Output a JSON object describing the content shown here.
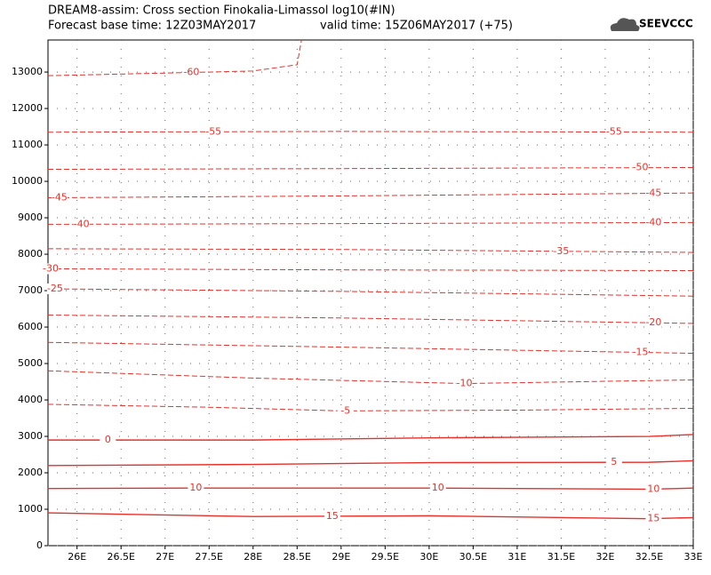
{
  "chart_data": {
    "type": "contour",
    "title": "DREAM8-assim: Cross section Finokalia-Limassol log10(#IN)",
    "subtitle": "Forecast base time: 12Z03MAY2017",
    "valid_time": "valid time: 15Z06MAY2017 (+75)",
    "logo": "SEEVCCC",
    "color": "#e8302a",
    "grid": true,
    "xlim": [
      25.67,
      33
    ],
    "ylim": [
      0,
      13880
    ],
    "xticks": [
      {
        "value": 26,
        "label": "26E"
      },
      {
        "value": 26.5,
        "label": "26.5E"
      },
      {
        "value": 27,
        "label": "27E"
      },
      {
        "value": 27.5,
        "label": "27.5E"
      },
      {
        "value": 28,
        "label": "28E"
      },
      {
        "value": 28.5,
        "label": "28.5E"
      },
      {
        "value": 29,
        "label": "29E"
      },
      {
        "value": 29.5,
        "label": "29.5E"
      },
      {
        "value": 30,
        "label": "30E"
      },
      {
        "value": 30.5,
        "label": "30.5E"
      },
      {
        "value": 31,
        "label": "31E"
      },
      {
        "value": 31.5,
        "label": "31.5E"
      },
      {
        "value": 32,
        "label": "32E"
      },
      {
        "value": 32.5,
        "label": "32.5E"
      },
      {
        "value": 33,
        "label": "33E"
      }
    ],
    "yticks": [
      0,
      1000,
      2000,
      3000,
      4000,
      5000,
      6000,
      7000,
      8000,
      9000,
      10000,
      11000,
      12000,
      13000
    ],
    "contours": [
      {
        "level": -60,
        "style": "dashed",
        "x": [
          25.67,
          27.5,
          28,
          28.5,
          28.55
        ],
        "y": [
          12900,
          13000,
          13030,
          13200,
          13880
        ],
        "label_x": [
          27.3
        ]
      },
      {
        "level": -55,
        "style": "dashed",
        "x": [
          25.67,
          29,
          33
        ],
        "y": [
          11350,
          11370,
          11350
        ],
        "label_x": [
          27.55,
          32.1
        ]
      },
      {
        "level": -50,
        "style": "dashed",
        "x": [
          25.67,
          29,
          33
        ],
        "y": [
          10330,
          10350,
          10380
        ],
        "label_x": [
          32.4
        ]
      },
      {
        "level": -45,
        "style": "dashed",
        "x": [
          25.67,
          29,
          33
        ],
        "y": [
          9550,
          9600,
          9680
        ],
        "label_x": [
          25.8,
          32.55
        ]
      },
      {
        "level": -40,
        "style": "dashed",
        "x": [
          25.67,
          29,
          33
        ],
        "y": [
          8820,
          8840,
          8870
        ],
        "label_x": [
          26.05,
          32.55
        ]
      },
      {
        "level": -35,
        "style": "dashed",
        "x": [
          25.67,
          29,
          31.5,
          33
        ],
        "y": [
          8150,
          8130,
          8080,
          8050
        ],
        "label_x": [
          31.5
        ]
      },
      {
        "level": -30,
        "style": "dashed",
        "x": [
          25.67,
          29,
          33
        ],
        "y": [
          7600,
          7570,
          7550
        ],
        "label_x": [
          25.7
        ]
      },
      {
        "level": -25,
        "style": "dashed",
        "x": [
          25.67,
          29,
          33
        ],
        "y": [
          7050,
          6980,
          6850
        ],
        "label_x": [
          25.75
        ]
      },
      {
        "level": -20,
        "style": "dashed",
        "x": [
          25.67,
          29,
          33
        ],
        "y": [
          6330,
          6250,
          6100
        ],
        "label_x": [
          32.55
        ]
      },
      {
        "level": -15,
        "style": "dashed",
        "x": [
          25.67,
          29,
          33
        ],
        "y": [
          5580,
          5450,
          5280
        ],
        "label_x": [
          32.4
        ]
      },
      {
        "level": -10,
        "style": "dashed",
        "x": [
          25.67,
          28,
          30.4,
          33
        ],
        "y": [
          4800,
          4600,
          4450,
          4550
        ],
        "label_x": [
          30.4
        ]
      },
      {
        "level": -5,
        "style": "dashed",
        "x": [
          25.67,
          27.5,
          29,
          31,
          33
        ],
        "y": [
          3880,
          3800,
          3700,
          3720,
          3770
        ],
        "label_x": [
          29.05
        ]
      },
      {
        "level": 0,
        "style": "solid",
        "x": [
          25.67,
          28,
          30,
          32.5,
          33
        ],
        "y": [
          2900,
          2900,
          2960,
          3000,
          3050
        ],
        "label_x": [
          26.35
        ]
      },
      {
        "level": 5,
        "style": "solid",
        "x": [
          25.67,
          28,
          30,
          32.5,
          33
        ],
        "y": [
          2200,
          2230,
          2280,
          2290,
          2330
        ],
        "label_x": [
          32.1
        ]
      },
      {
        "level": 10,
        "style": "solid",
        "x": [
          25.67,
          27.3,
          30.1,
          32.5,
          33
        ],
        "y": [
          1570,
          1580,
          1580,
          1550,
          1580
        ],
        "label_x": [
          27.35,
          30.1,
          32.55
        ]
      },
      {
        "level": 15,
        "style": "solid",
        "x": [
          25.67,
          28,
          30,
          32.5,
          33
        ],
        "y": [
          900,
          800,
          820,
          740,
          770
        ],
        "label_x": [
          28.9,
          32.55
        ]
      }
    ]
  }
}
